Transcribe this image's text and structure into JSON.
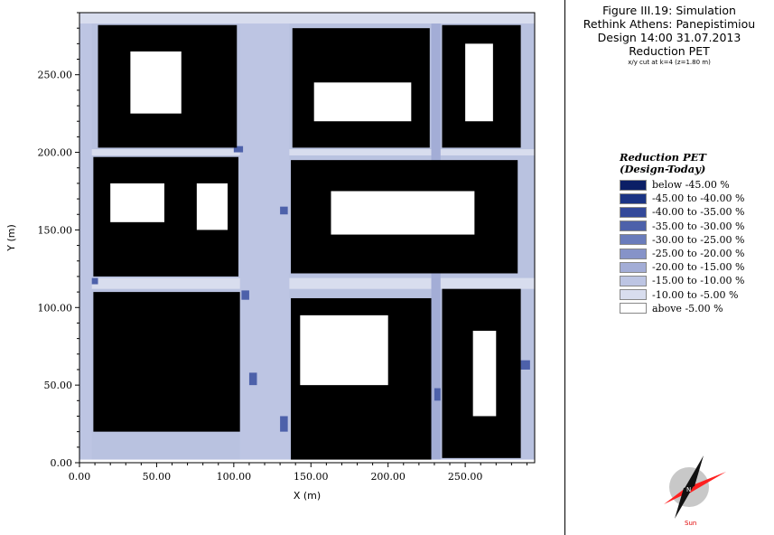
{
  "header": {
    "figure": "Figure III.19: Simulation",
    "project": "Rethink Athens: Panepistimiou",
    "scenario": "Design 14:00 31.07.2013",
    "quantity": "Reduction PET",
    "cut": "x/y cut at k=4 (z=1.80 m)"
  },
  "legend": {
    "title_line1": "Reduction PET",
    "title_line2": "(Design-Today)",
    "items": [
      {
        "label": "below -45.00 %",
        "color": "#0b1f66"
      },
      {
        "label": "-45.00 to -40.00 %",
        "color": "#1b3484"
      },
      {
        "label": "-40.00 to -35.00 %",
        "color": "#33499a"
      },
      {
        "label": "-35.00 to -30.00 %",
        "color": "#4d61aa"
      },
      {
        "label": "-30.00 to -25.00 %",
        "color": "#6a7cbb"
      },
      {
        "label": "-25.00 to -20.00 %",
        "color": "#8693c8"
      },
      {
        "label": "-20.00 to -15.00 %",
        "color": "#a3add6"
      },
      {
        "label": "-15.00 to -10.00 %",
        "color": "#bdc5e3"
      },
      {
        "label": "-10.00 to -5.00 %",
        "color": "#d8ddee"
      },
      {
        "label": "above -5.00 %",
        "color": "#ffffff"
      }
    ]
  },
  "compass": {
    "north_label": "N",
    "sun_label": "Sun"
  },
  "chart_data": {
    "type": "heatmap",
    "xlabel": "X (m)",
    "ylabel": "Y (m)",
    "xlim": [
      0,
      295
    ],
    "ylim": [
      0,
      290
    ],
    "x_ticks": [
      "0.00",
      "50.00",
      "100.00",
      "150.00",
      "200.00",
      "250.00"
    ],
    "y_ticks": [
      "0.00",
      "50.00",
      "100.00",
      "150.00",
      "200.00",
      "250.00"
    ],
    "x_tick_values": [
      0,
      50,
      100,
      150,
      200,
      250
    ],
    "y_tick_values": [
      0,
      50,
      100,
      150,
      200,
      250
    ],
    "background_value_color": "#b9c2e0",
    "buildings_color": "#000000",
    "buildings": [
      [
        12,
        203,
        102,
        282
      ],
      [
        138,
        203,
        227,
        280
      ],
      [
        235,
        203,
        286,
        282
      ],
      [
        9,
        120,
        103,
        197
      ],
      [
        137,
        122,
        284,
        195
      ],
      [
        9,
        20,
        104,
        110
      ],
      [
        137,
        2,
        228,
        106
      ],
      [
        235,
        3,
        286,
        112
      ]
    ],
    "courtyards": [
      [
        33,
        225,
        66,
        265
      ],
      [
        152,
        220,
        215,
        245
      ],
      [
        250,
        220,
        268,
        270
      ],
      [
        20,
        155,
        55,
        180
      ],
      [
        76,
        150,
        96,
        180
      ],
      [
        163,
        147,
        256,
        175
      ],
      [
        143,
        50,
        200,
        95
      ],
      [
        255,
        30,
        270,
        85
      ]
    ]
  }
}
